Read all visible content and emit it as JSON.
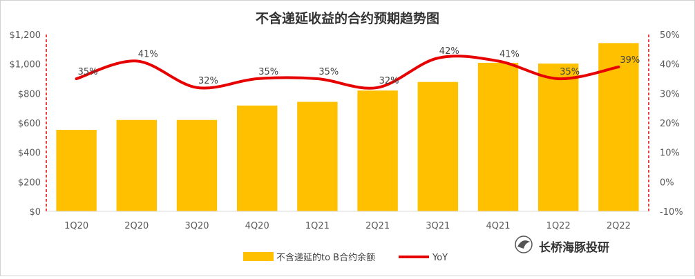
{
  "chart_data": {
    "type": "bar+line",
    "title": "不含递延收益的合约预期趋势图",
    "categories": [
      "1Q20",
      "2Q20",
      "3Q20",
      "4Q20",
      "1Q21",
      "2Q21",
      "3Q21",
      "4Q21",
      "1Q22",
      "2Q22"
    ],
    "series": [
      {
        "name": "不含递延的to B合约余额",
        "type": "bar",
        "axis": "left",
        "color": "#FFC000",
        "values": [
          553,
          620,
          620,
          718,
          743,
          820,
          878,
          1008,
          1003,
          1142
        ]
      },
      {
        "name": "YoY",
        "type": "line",
        "axis": "right",
        "color": "#E60000",
        "values": [
          35,
          41,
          32,
          35,
          35,
          32,
          42,
          41,
          35,
          39
        ],
        "labels": [
          "35%",
          "41%",
          "32%",
          "35%",
          "35%",
          "32%",
          "42%",
          "41%",
          "35%",
          "39%"
        ]
      }
    ],
    "y_left": {
      "min": 0,
      "max": 1200,
      "step": 200,
      "ticks": [
        "$0",
        "$200",
        "$400",
        "$600",
        "$800",
        "$1,000",
        "$1,200"
      ]
    },
    "y_right": {
      "min": -10,
      "max": 50,
      "step": 10,
      "ticks": [
        "-10%",
        "0%",
        "10%",
        "20%",
        "30%",
        "40%",
        "50%"
      ]
    },
    "grid": false,
    "legend_position": "bottom"
  },
  "watermark": {
    "text": "长桥海豚投研"
  }
}
